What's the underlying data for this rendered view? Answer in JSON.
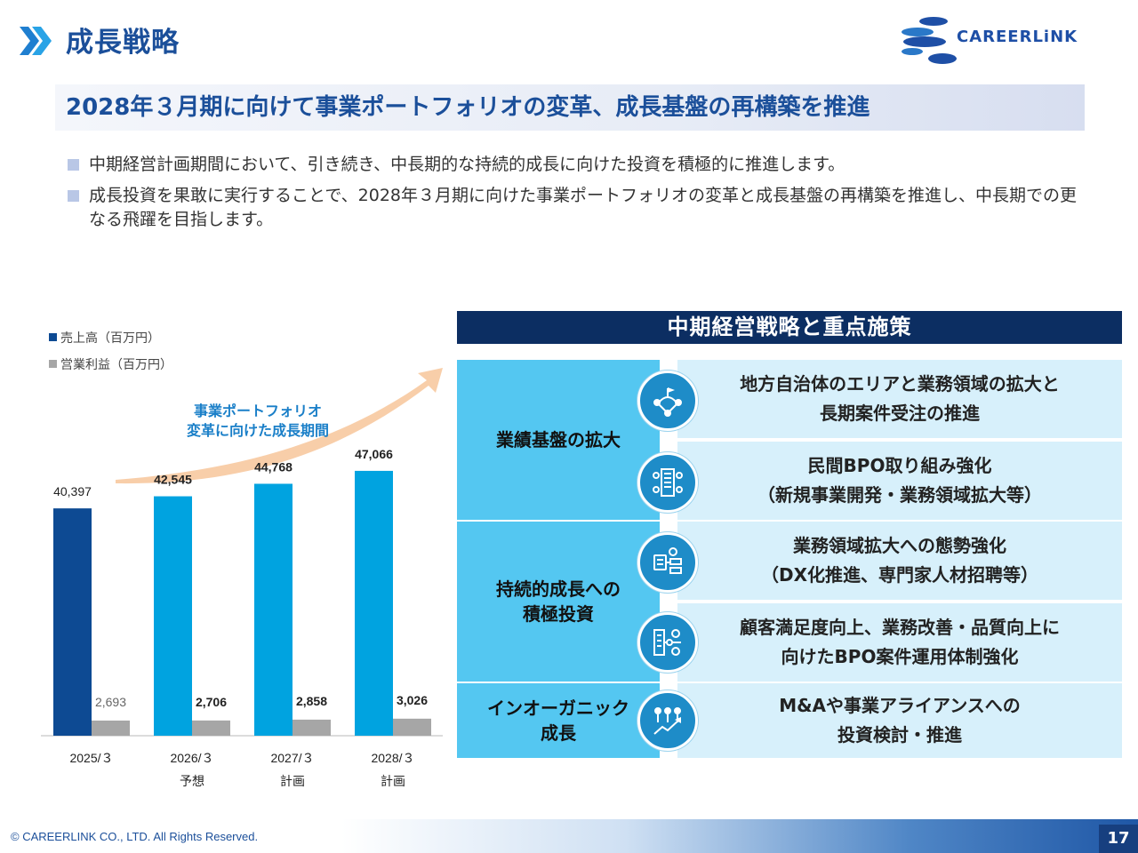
{
  "header": {
    "title": "成長戦略",
    "logo_text": "CAREERLiNK"
  },
  "banner": {
    "text": "2028年３月期に向けて事業ポートフォリオの変革、成長基盤の再構築を推進"
  },
  "bullets": [
    "中期経営計画期間において、引き続き、中長期的な持続的成長に向けた投資を積極的に推進します。",
    "成長投資を果敢に実行することで、2028年３月期に向けた事業ポートフォリオの変革と成長基盤の再構築を推進し、中長期での更なる飛躍を目指します。"
  ],
  "chart_data": {
    "type": "bar",
    "categories": [
      "2025/３",
      "2026/３",
      "2027/３",
      "2028/３"
    ],
    "sublabels": [
      "",
      "予想",
      "計画",
      "計画"
    ],
    "series": [
      {
        "name": "売上高（百万円）",
        "values": [
          40397,
          42545,
          44768,
          47066
        ],
        "labels": [
          "40,397",
          "42,545",
          "44,768",
          "47,066"
        ]
      },
      {
        "name": "営業利益（百万円）",
        "values": [
          2693,
          2706,
          2858,
          3026
        ],
        "labels": [
          "2,693",
          "2,706",
          "2,858",
          "3,026"
        ]
      }
    ],
    "arrow_label": "事業ポートフォリオ\n変革に向けた成長期間",
    "colors": {
      "actual": "#0d4a93",
      "plan": "#00a3e0",
      "profit": "#a6a6a6",
      "arrow": "#f7c9a0"
    },
    "ylim": [
      0,
      60000
    ]
  },
  "panel": {
    "title": "中期経営戦略と重点施策",
    "categories": [
      {
        "label": "業績基盤の拡大"
      },
      {
        "label": "持続的成長への\n積極投資"
      },
      {
        "label": "インオーガニック\n成長"
      }
    ],
    "items": [
      {
        "text": "地方自治体のエリアと業務領域の拡大と\n長期案件受注の推進",
        "icon": "network-flow-icon"
      },
      {
        "text": "民間BPO取り組み強化\n（新規事業開発・業務領域拡大等）",
        "icon": "office-building-icon"
      },
      {
        "text": "業務領域拡大への態勢強化\n（DX化推進、専門家人材招聘等）",
        "icon": "digital-transformation-icon"
      },
      {
        "text": "顧客満足度向上、業務改善・品質向上に\n向けたBPO案件運用体制強化",
        "icon": "customer-operations-icon"
      },
      {
        "text": "M&Aや事業アライアンスへの\n投資検討・推進",
        "icon": "team-growth-icon"
      }
    ]
  },
  "footer": {
    "copyright": "© CAREERLINK CO., LTD. All Rights Reserved.",
    "page": "17"
  }
}
